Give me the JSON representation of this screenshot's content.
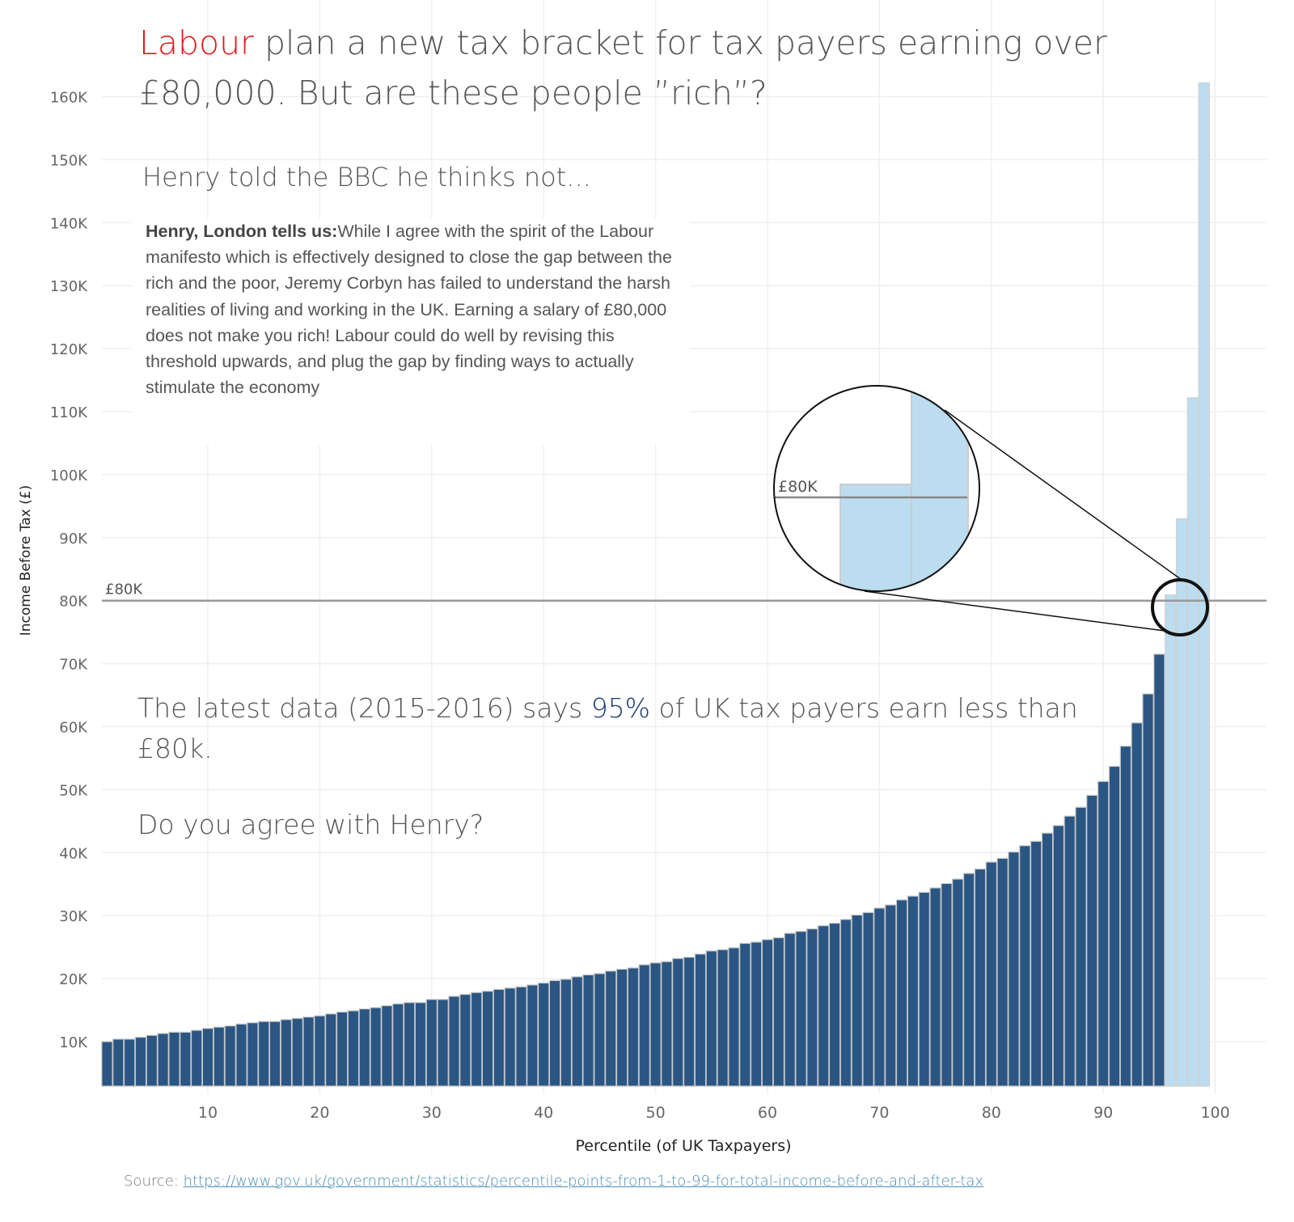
{
  "title": {
    "highlight": "Labour",
    "rest": " plan a new tax bracket for tax payers earning over £80,000. But are these people ”rich”?",
    "highlight_color": "#e3191b"
  },
  "subtitle": "Henry told the BBC he thinks not...",
  "quote": {
    "author": "Henry, London tells us:",
    "text": "While I agree with the spirit of the Labour manifesto which is effectively designed to close the gap between the rich and the poor, Jeremy Corbyn has failed to understand the harsh realities of living and working in the UK. Earning a salary of £80,000 does not make you rich! Labour could do well by revising this threshold upwards, and plug the gap by finding ways to actually stimulate the economy"
  },
  "body": {
    "part1": "The latest data (2015-2016) says ",
    "pct": "95%",
    "part2": " of UK tax payers earn less than £80k.",
    "question": "Do you agree with Henry?",
    "pct_color": "#1f3b73"
  },
  "source": {
    "label": "Source: ",
    "link": "https://www.gov.uk/government/statistics/percentile-points-from-1-to-99-for-total-income-before-and-after-tax"
  },
  "chart_data": {
    "type": "bar",
    "xlabel": "Percentile (of UK Taxpayers)",
    "ylabel": "Income Before Tax (£)",
    "x_ticks": [
      "10",
      "20",
      "30",
      "40",
      "50",
      "60",
      "70",
      "80",
      "90",
      "100"
    ],
    "y_ticks": [
      "10K",
      "20K",
      "30K",
      "40K",
      "50K",
      "60K",
      "70K",
      "80K",
      "90K",
      "100K",
      "110K",
      "120K",
      "130K",
      "140K",
      "150K",
      "160K"
    ],
    "ylim": [
      3000,
      165000
    ],
    "xlim": [
      0.5,
      103
    ],
    "grid": true,
    "x": [
      1,
      2,
      3,
      4,
      5,
      6,
      7,
      8,
      9,
      10,
      11,
      12,
      13,
      14,
      15,
      16,
      17,
      18,
      19,
      20,
      21,
      22,
      23,
      24,
      25,
      26,
      27,
      28,
      29,
      30,
      31,
      32,
      33,
      34,
      35,
      36,
      37,
      38,
      39,
      40,
      41,
      42,
      43,
      44,
      45,
      46,
      47,
      48,
      49,
      50,
      51,
      52,
      53,
      54,
      55,
      56,
      57,
      58,
      59,
      60,
      61,
      62,
      63,
      64,
      65,
      66,
      67,
      68,
      69,
      70,
      71,
      72,
      73,
      74,
      75,
      76,
      77,
      78,
      79,
      80,
      81,
      82,
      83,
      84,
      85,
      86,
      87,
      88,
      89,
      90,
      91,
      92,
      93,
      94,
      95,
      96,
      97,
      98,
      99
    ],
    "values": [
      10000,
      10400,
      10400,
      10700,
      11000,
      11300,
      11500,
      11500,
      11800,
      12100,
      12300,
      12500,
      12800,
      13000,
      13200,
      13200,
      13500,
      13700,
      13900,
      14100,
      14400,
      14700,
      14900,
      15200,
      15400,
      15700,
      16000,
      16200,
      16200,
      16700,
      16700,
      17200,
      17500,
      17800,
      18000,
      18300,
      18500,
      18700,
      19000,
      19300,
      19700,
      19900,
      20300,
      20600,
      20800,
      21200,
      21500,
      21700,
      22200,
      22500,
      22700,
      23200,
      23400,
      23900,
      24400,
      24600,
      24900,
      25600,
      25800,
      26200,
      26500,
      27200,
      27500,
      27900,
      28400,
      28800,
      29400,
      30100,
      30500,
      31200,
      31700,
      32500,
      33100,
      33700,
      34400,
      35100,
      35800,
      36700,
      37400,
      38500,
      39100,
      40100,
      41100,
      41800,
      43100,
      44300,
      45800,
      47200,
      49100,
      51300,
      53700,
      56900,
      60600,
      65200,
      71500,
      80900,
      93000,
      112200,
      162200
    ],
    "highlight_from_percentile": 96,
    "colors": {
      "below": "#2b5683",
      "above": "#bcdcef",
      "reference_line": "#999999"
    },
    "reference_line": {
      "value": 80000,
      "label": "£80K"
    },
    "zoom_callout": {
      "label": "£80K"
    }
  }
}
